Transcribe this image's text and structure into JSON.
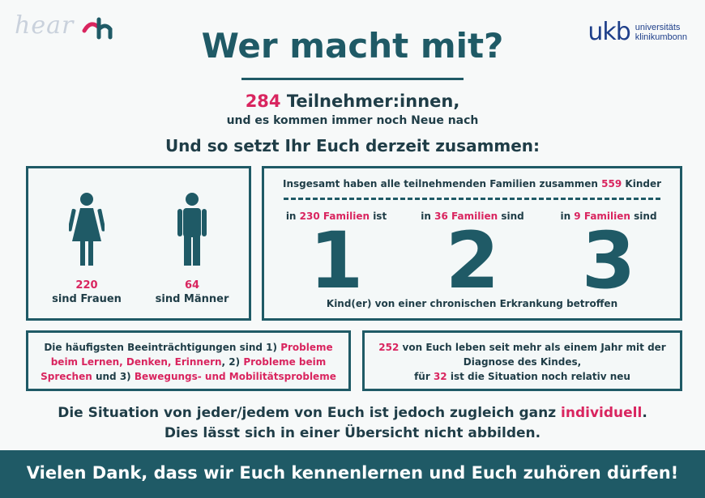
{
  "logos": {
    "hear": "hear",
    "ukb_mark": "ukb",
    "ukb_line1": "universitäts",
    "ukb_line2": "klinikumbonn"
  },
  "title": "Wer macht mit?",
  "participants": {
    "number": "284",
    "label": "Teilnehmer:innen,",
    "sub": "und es kommen immer noch Neue nach"
  },
  "composition_heading": "Und so setzt Ihr Euch derzeit zusammen:",
  "gender": {
    "women": {
      "count": "220",
      "label": "sind Frauen"
    },
    "men": {
      "count": "64",
      "label": "sind Männer"
    }
  },
  "children": {
    "head_prefix": "Insgesamt haben alle teilnehmenden Familien zusammen",
    "total": "559",
    "head_suffix": "Kinder",
    "groups": [
      {
        "pre": "in",
        "families": "230 Familien",
        "post": "ist",
        "kids": "1"
      },
      {
        "pre": "in",
        "families": "36 Familien",
        "post": "sind",
        "kids": "2"
      },
      {
        "pre": "in",
        "families": "9 Familien",
        "post": "sind",
        "kids": "3"
      }
    ],
    "footer": "Kind(er) von einer chronischen Erkrankung betroffen"
  },
  "impairments": {
    "t1": "Die häufigsten Beeinträchtigungen sind 1)",
    "a1": "Probleme beim Lernen, Denken, Erinnern",
    "t2": ", 2)",
    "a2": "Probleme beim Sprechen",
    "t3": "und 3)",
    "a3": "Bewegungs- und Mobilitätsprobleme"
  },
  "diagnosis": {
    "n1": "252",
    "t1": "von Euch leben seit mehr als einem Jahr mit der Diagnose des Kindes,",
    "t2": "für",
    "n2": "32",
    "t3": "ist die Situation noch relativ neu"
  },
  "closing": {
    "l1a": "Die Situation von jeder/jedem von Euch ist jedoch zugleich ganz",
    "l1b": "individuell",
    "l1c": ".",
    "l2": "Dies lässt sich in einer Übersicht nicht abbilden."
  },
  "footer": "Vielen Dank, dass wir Euch kennenlernen und Euch zuhören dürfen!",
  "colors": {
    "accent": "#d9255f",
    "teal": "#1f5a66",
    "text": "#1f3d47"
  }
}
